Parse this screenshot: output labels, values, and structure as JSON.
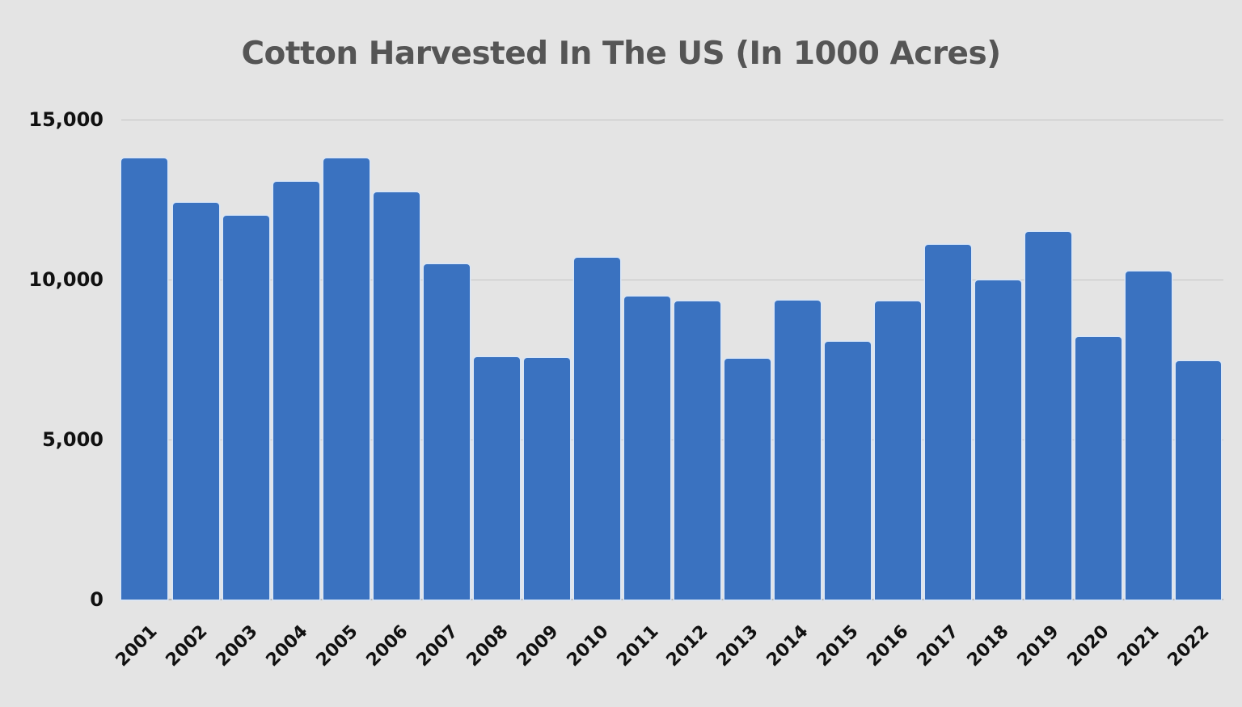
{
  "chart_data": {
    "type": "bar",
    "title": "Cotton Harvested In The US (In 1000 Acres)",
    "xlabel": "",
    "ylabel": "",
    "ylim": [
      0,
      15000
    ],
    "yticks": [
      "0",
      "5,000",
      "10,000",
      "15,000"
    ],
    "ytick_values": [
      0,
      5000,
      10000,
      15000
    ],
    "grid": true,
    "legend": null,
    "bar_color": "#3a72c0",
    "background_color": "#e4e4e4",
    "categories": [
      "2001",
      "2002",
      "2003",
      "2004",
      "2005",
      "2006",
      "2007",
      "2008",
      "2009",
      "2010",
      "2011",
      "2012",
      "2013",
      "2014",
      "2015",
      "2016",
      "2017",
      "2018",
      "2019",
      "2020",
      "2021",
      "2022"
    ],
    "values": [
      13800,
      12410,
      11990,
      13060,
      13800,
      12730,
      10490,
      7570,
      7540,
      10680,
      9460,
      9330,
      7530,
      9350,
      8060,
      9310,
      11090,
      9980,
      11500,
      8210,
      10260,
      7440
    ]
  }
}
